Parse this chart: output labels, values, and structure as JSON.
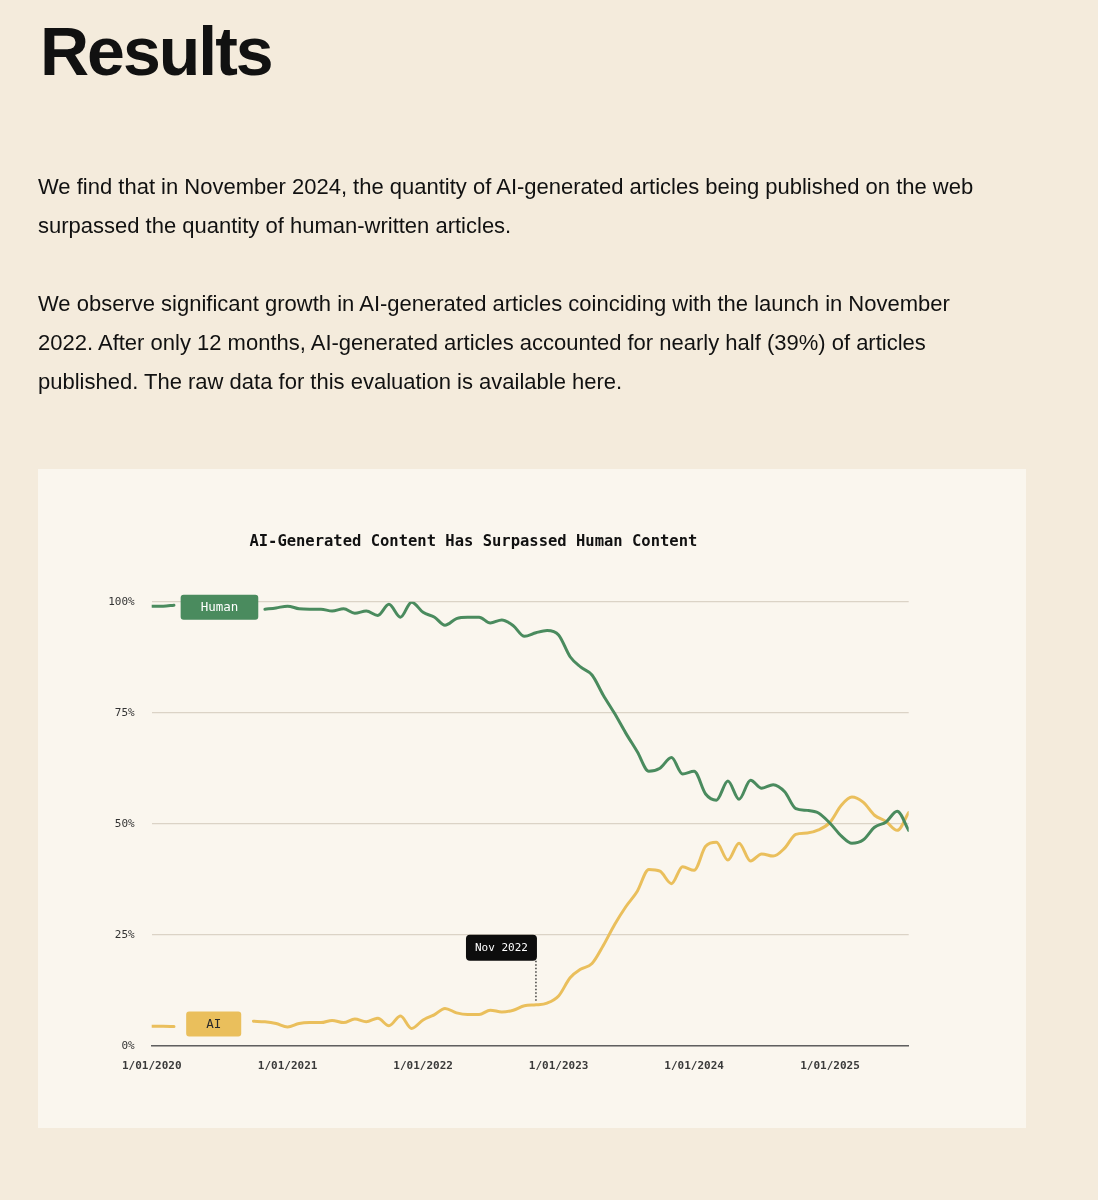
{
  "chart_data": {
    "type": "line",
    "title": "AI-Generated Content Has Surpassed Human Content",
    "x": [
      "2020-01",
      "2020-02",
      "2020-03",
      "2020-04",
      "2020-05",
      "2020-06",
      "2020-07",
      "2020-08",
      "2020-09",
      "2020-10",
      "2020-11",
      "2020-12",
      "2021-01",
      "2021-02",
      "2021-03",
      "2021-04",
      "2021-05",
      "2021-06",
      "2021-07",
      "2021-08",
      "2021-09",
      "2021-10",
      "2021-11",
      "2021-12",
      "2022-01",
      "2022-02",
      "2022-03",
      "2022-04",
      "2022-05",
      "2022-06",
      "2022-07",
      "2022-08",
      "2022-09",
      "2022-10",
      "2022-11",
      "2022-12",
      "2023-01",
      "2023-02",
      "2023-03",
      "2023-04",
      "2023-05",
      "2023-06",
      "2023-07",
      "2023-08",
      "2023-09",
      "2023-10",
      "2023-11",
      "2023-12",
      "2024-01",
      "2024-02",
      "2024-03",
      "2024-04",
      "2024-05",
      "2024-06",
      "2024-07",
      "2024-08",
      "2024-09",
      "2024-10",
      "2024-11",
      "2024-12",
      "2025-01",
      "2025-02",
      "2025-03",
      "2025-04",
      "2025-05",
      "2025-06",
      "2025-07",
      "2025-08"
    ],
    "series": [
      {
        "name": "Human",
        "color": "#4a8b5e",
        "values": [
          99.0,
          99.0,
          99.2,
          null,
          null,
          null,
          null,
          null,
          null,
          null,
          98.3,
          98.6,
          99.0,
          98.4,
          98.3,
          98.3,
          97.9,
          98.4,
          97.4,
          97.9,
          96.9,
          99.4,
          96.5,
          99.9,
          97.6,
          96.5,
          94.7,
          96.2,
          96.5,
          96.5,
          95.2,
          95.9,
          94.6,
          92.2,
          93.0,
          93.5,
          92.5,
          87.6,
          85.3,
          83.5,
          79.0,
          74.8,
          70.4,
          66.2,
          61.8,
          62.5,
          64.9,
          61.2,
          61.8,
          56.7,
          55.3,
          59.6,
          55.5,
          59.8,
          58.0,
          58.8,
          57.2,
          53.4,
          53.0,
          52.4,
          50.1,
          47.2,
          45.6,
          46.4,
          49.2,
          50.4,
          52.8,
          48.5
        ]
      },
      {
        "name": "AI",
        "color": "#eabf5c",
        "values": [
          4.4,
          4.4,
          4.3,
          null,
          null,
          null,
          null,
          null,
          null,
          5.5,
          5.4,
          5.0,
          4.2,
          5.0,
          5.2,
          5.2,
          5.7,
          5.2,
          6.0,
          5.4,
          6.2,
          4.5,
          6.7,
          3.9,
          5.8,
          7.0,
          8.4,
          7.4,
          7.0,
          7.0,
          8.0,
          7.6,
          8.0,
          9.0,
          9.2,
          9.6,
          11.2,
          15.3,
          17.2,
          18.5,
          22.5,
          27.3,
          31.3,
          34.8,
          39.7,
          39.3,
          36.5,
          40.3,
          39.5,
          44.9,
          45.8,
          41.8,
          45.6,
          41.6,
          43.2,
          42.7,
          44.5,
          47.6,
          47.9,
          48.6,
          50.3,
          54.2,
          56.0,
          54.8,
          51.9,
          50.5,
          48.5,
          52.5
        ]
      }
    ],
    "xlim": [
      "2020-01",
      "2025-08"
    ],
    "xticks": [
      {
        "value": "2020-01-01",
        "label": "1/01/2020"
      },
      {
        "value": "2021-01-01",
        "label": "1/01/2021"
      },
      {
        "value": "2022-01-01",
        "label": "1/01/2022"
      },
      {
        "value": "2023-01-01",
        "label": "1/01/2023"
      },
      {
        "value": "2024-01-01",
        "label": "1/01/2024"
      },
      {
        "value": "2025-01-01",
        "label": "1/01/2025"
      }
    ],
    "ylim": [
      0,
      100
    ],
    "yticks": [
      {
        "value": 0,
        "label": "0%"
      },
      {
        "value": 25,
        "label": "25%"
      },
      {
        "value": 50,
        "label": "50%"
      },
      {
        "value": 75,
        "label": "75%"
      },
      {
        "value": 100,
        "label": "100%"
      }
    ],
    "grid": "y",
    "legend": false,
    "marker": "none",
    "annotations": [
      "Results",
      "We find that in November 2024, the quantity of AI-generated articles being published on the web surpassed the quantity of human-written articles.",
      "We observe significant growth in AI-generated articles coinciding with the launch in November 2022. After only 12 months, AI-generated articles accounted for nearly half (39%) of articles published. The raw data for this evaluation is available here.",
      {
        "text": "Nov 2022",
        "x": "2022-11",
        "y": 9.2
      }
    ]
  }
}
